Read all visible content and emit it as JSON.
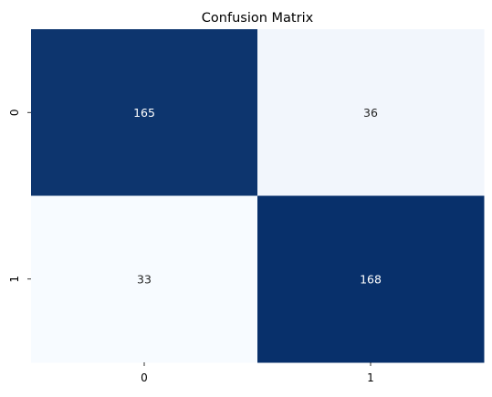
{
  "chart_data": {
    "type": "heatmap",
    "title": "Confusion Matrix",
    "xlabel": "",
    "ylabel": "",
    "x_categories": [
      "0",
      "1"
    ],
    "y_categories": [
      "0",
      "1"
    ],
    "values": [
      [
        165,
        36
      ],
      [
        33,
        168
      ]
    ],
    "colormap": "Blues",
    "color_low": "#f7fbff",
    "color_high": "#08306b",
    "text_color_dark_cell": "#ffffff",
    "text_color_light_cell": "#262626",
    "colorbar": false,
    "grid": false
  }
}
